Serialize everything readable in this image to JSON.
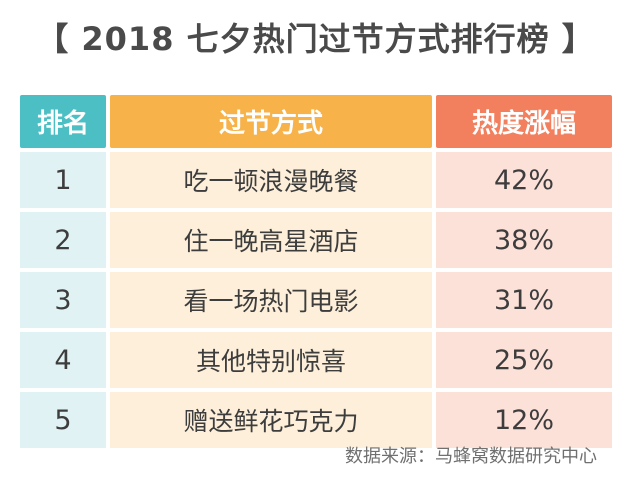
{
  "chart_data": {
    "type": "table",
    "title": "【 2018 七夕热门过节方式排行榜 】",
    "columns": [
      "排名",
      "过节方式",
      "热度涨幅"
    ],
    "rows": [
      {
        "rank": "1",
        "method": "吃一顿浪漫晚餐",
        "heat": "42%"
      },
      {
        "rank": "2",
        "method": "住一晚高星酒店",
        "heat": "38%"
      },
      {
        "rank": "3",
        "method": "看一场热门电影",
        "heat": "31%"
      },
      {
        "rank": "4",
        "method": "其他特别惊喜",
        "heat": "25%"
      },
      {
        "rank": "5",
        "method": "赠送鲜花巧克力",
        "heat": "12%"
      }
    ],
    "values": [
      42,
      38,
      31,
      25,
      12
    ],
    "source": "数据来源：马蜂窝数据研究中心"
  },
  "colors": {
    "rank_header": "#4cbfc4",
    "method_header": "#f7b24a",
    "heat_header": "#f27f5e",
    "rank_cell": "#e0f2f3",
    "method_cell": "#fdefd9",
    "heat_cell": "#fce1d9"
  }
}
